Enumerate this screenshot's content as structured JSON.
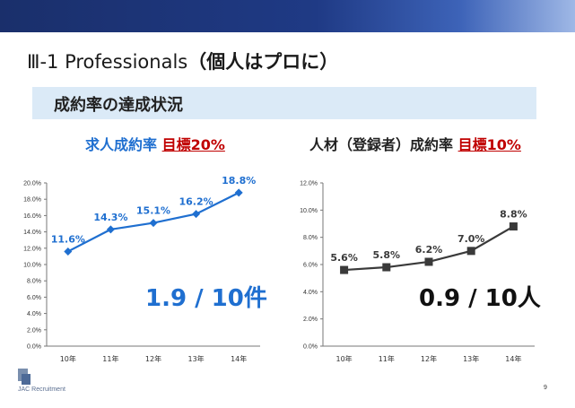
{
  "slide": {
    "title_prefix": "Ⅲ-1 Professionals",
    "title_suffix": "（個人はプロに）",
    "section": "成約率の達成状況",
    "page_number": "9",
    "logo_text": "JAC Recruitment"
  },
  "colors": {
    "left_series": "#1f6fd0",
    "right_series": "#3a3a3a",
    "target": "#c00000",
    "banner": "#1f3a85"
  },
  "chart_data": [
    {
      "type": "line",
      "title": "求人成約率",
      "target_label": "目標20%",
      "categories": [
        "10年",
        "11年",
        "12年",
        "13年",
        "14年"
      ],
      "series": [
        {
          "values": [
            11.6,
            14.3,
            15.1,
            16.2,
            18.8
          ]
        }
      ],
      "data_labels": [
        "11.6%",
        "14.3%",
        "15.1%",
        "16.2%",
        "18.8%"
      ],
      "y_ticks": [
        "0.0%",
        "2.0%",
        "4.0%",
        "6.0%",
        "8.0%",
        "10.0%",
        "12.0%",
        "14.0%",
        "16.0%",
        "18.0%",
        "20.0%"
      ],
      "ylim": [
        0,
        20
      ],
      "xlabel": "",
      "ylabel": "",
      "grid": false,
      "marker": "diamond",
      "annotation": "1.9 / 10件"
    },
    {
      "type": "line",
      "title": "人材（登録者）成約率",
      "target_label": "目標10%",
      "categories": [
        "10年",
        "11年",
        "12年",
        "13年",
        "14年"
      ],
      "series": [
        {
          "values": [
            5.6,
            5.8,
            6.2,
            7.0,
            8.8
          ]
        }
      ],
      "data_labels": [
        "5.6%",
        "5.8%",
        "6.2%",
        "7.0%",
        "8.8%"
      ],
      "y_ticks": [
        "0.0%",
        "2.0%",
        "4.0%",
        "6.0%",
        "8.0%",
        "10.0%",
        "12.0%"
      ],
      "ylim": [
        0,
        12
      ],
      "xlabel": "",
      "ylabel": "",
      "grid": false,
      "marker": "square",
      "annotation": "0.9 / 10人"
    }
  ]
}
